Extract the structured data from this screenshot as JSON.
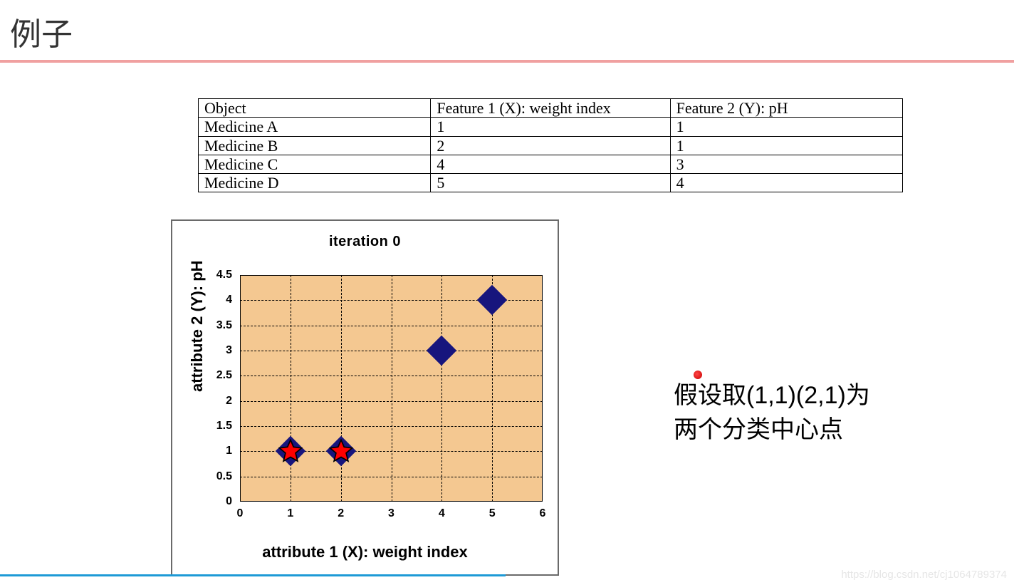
{
  "title": "例子",
  "divider_color": "#f0a0a0",
  "table": {
    "columns": [
      "Object",
      "Feature 1 (X): weight index",
      "Feature 2 (Y):  pH"
    ],
    "rows": [
      [
        "Medicine A",
        "1",
        "1"
      ],
      [
        "Medicine B",
        "2",
        "1"
      ],
      [
        "Medicine C",
        "4",
        "3"
      ],
      [
        "Medicine D",
        "5",
        "4"
      ]
    ],
    "border_color": "#000000",
    "font_family": "Times New Roman",
    "font_size_pt": 16
  },
  "chart": {
    "type": "scatter",
    "title": "iteration 0",
    "xlabel": "attribute 1 (X): weight index",
    "ylabel": "attribute 2 (Y): pH",
    "xlim": [
      0,
      6
    ],
    "ylim": [
      0,
      4.5
    ],
    "xtick_step": 1,
    "ytick_step": 0.5,
    "xticks": [
      0,
      1,
      2,
      3,
      4,
      5,
      6
    ],
    "yticks": [
      0,
      0.5,
      1,
      1.5,
      2,
      2.5,
      3,
      3.5,
      4,
      4.5
    ],
    "background_color": "#f4c891",
    "grid_color": "#000000",
    "grid_style": "dashed",
    "frame_color": "#6a6a6a",
    "axis_font_size": 16,
    "label_font_size": 22,
    "title_font_size": 20,
    "diamonds": {
      "points": [
        {
          "x": 1,
          "y": 1
        },
        {
          "x": 2,
          "y": 1
        },
        {
          "x": 4,
          "y": 3
        },
        {
          "x": 5,
          "y": 4
        }
      ],
      "color": "#17157d",
      "size": 30
    },
    "stars": {
      "points": [
        {
          "x": 1,
          "y": 1
        },
        {
          "x": 2,
          "y": 1
        }
      ],
      "fill_color": "#ff0000",
      "stroke_color": "#000000",
      "size": 34
    }
  },
  "annotation": {
    "line1": "假设取(1,1)(2,1)为",
    "line2": "两个分类中心点",
    "font_size": 34,
    "dot_color": "#d40000"
  },
  "watermark": "https://blog.csdn.net/cj1064789374",
  "bottom_rule_color": "#1e9ad6"
}
